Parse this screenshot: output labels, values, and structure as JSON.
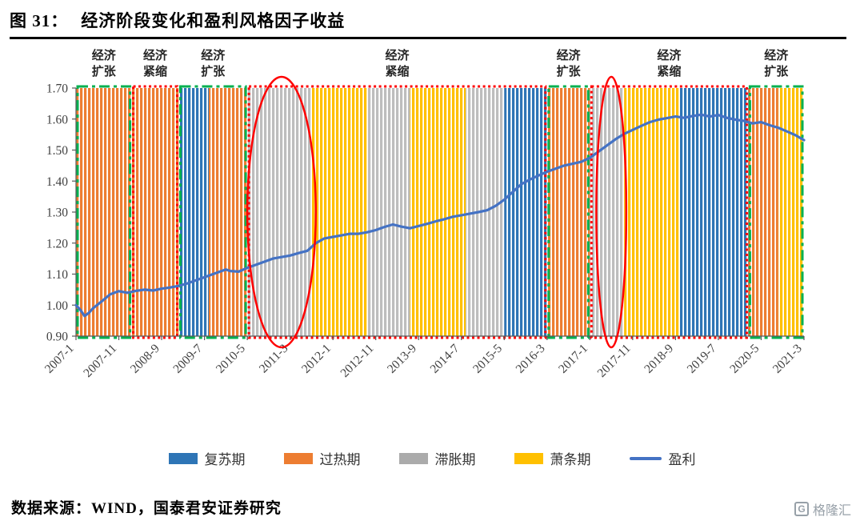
{
  "title": {
    "prefix": "图 31：",
    "text": "经济阶段变化和盈利风格因子收益"
  },
  "source": {
    "text": "数据来源：WIND，国泰君安证券研究"
  },
  "watermark": {
    "icon": "G",
    "text": "格隆汇"
  },
  "chart_data": {
    "type": "line",
    "title": "经济阶段变化和盈利风格因子收益",
    "xlabel": "",
    "ylabel": "",
    "grid": false,
    "legend_position": "bottom",
    "ylim": [
      0.9,
      1.7
    ],
    "ytick_step": 0.1,
    "x_unit": "months_since_2007-01",
    "xlim": [
      0,
      170
    ],
    "xticks": [
      0,
      10,
      20,
      30,
      40,
      50,
      60,
      70,
      80,
      90,
      100,
      110,
      120,
      130,
      140,
      150,
      160,
      170
    ],
    "xtick_labels": [
      "2007-1",
      "2007-11",
      "2008-9",
      "2009-7",
      "2010-5",
      "2011-3",
      "2012-1",
      "2012-11",
      "2013-9",
      "2014-7",
      "2015-5",
      "2016-3",
      "2017-1",
      "2017-11",
      "2018-9",
      "2019-7",
      "2020-5",
      "2021-3"
    ],
    "phase_colors": {
      "recovery": "#2E75B6",
      "overheat": "#ED7D31",
      "stagflation": "#BDBDBD",
      "recession": "#FFC000"
    },
    "phase_labels": {
      "recovery": "复苏期",
      "overheat": "过热期",
      "stagflation": "滞胀期",
      "recession": "萧条期"
    },
    "phase_bands": [
      {
        "start": 0,
        "end": 24,
        "phase": "overheat"
      },
      {
        "start": 24,
        "end": 31,
        "phase": "recovery"
      },
      {
        "start": 31,
        "end": 40,
        "phase": "overheat"
      },
      {
        "start": 40,
        "end": 55,
        "phase": "stagflation"
      },
      {
        "start": 55,
        "end": 68,
        "phase": "recession"
      },
      {
        "start": 68,
        "end": 78,
        "phase": "stagflation"
      },
      {
        "start": 78,
        "end": 91,
        "phase": "recession"
      },
      {
        "start": 91,
        "end": 100,
        "phase": "stagflation"
      },
      {
        "start": 100,
        "end": 110,
        "phase": "recovery"
      },
      {
        "start": 110,
        "end": 120,
        "phase": "overheat"
      },
      {
        "start": 120,
        "end": 128,
        "phase": "stagflation"
      },
      {
        "start": 128,
        "end": 141,
        "phase": "recession"
      },
      {
        "start": 141,
        "end": 157,
        "phase": "recovery"
      },
      {
        "start": 157,
        "end": 164,
        "phase": "overheat"
      },
      {
        "start": 164,
        "end": 170,
        "phase": "recession"
      }
    ],
    "box_colors": {
      "expansion": "#00B050",
      "contraction": "#FF0000"
    },
    "regime_boxes": [
      {
        "start": 0,
        "end": 13,
        "type": "expansion",
        "label": "经济扩张"
      },
      {
        "start": 13,
        "end": 24,
        "type": "contraction",
        "label": "经济紧缩"
      },
      {
        "start": 24,
        "end": 40,
        "type": "expansion",
        "label": "经济扩张"
      },
      {
        "start": 40,
        "end": 110,
        "type": "contraction",
        "label": "经济紧缩"
      },
      {
        "start": 110,
        "end": 120,
        "type": "expansion",
        "label": "经济扩张"
      },
      {
        "start": 120,
        "end": 157,
        "type": "contraction",
        "label": "经济紧缩"
      },
      {
        "start": 157,
        "end": 170,
        "type": "expansion",
        "label": "经济扩张"
      }
    ],
    "highlight_color": "#FF0000",
    "highlight_ellipses": [
      {
        "center_month": 48,
        "radius_months": 8
      },
      {
        "center_month": 125,
        "radius_months": 3.5
      }
    ],
    "series": [
      {
        "name": "盈利",
        "color": "#4472C4",
        "points": [
          [
            0,
            1.0
          ],
          [
            1,
            0.985
          ],
          [
            2,
            0.965
          ],
          [
            3,
            0.975
          ],
          [
            4,
            0.99
          ],
          [
            6,
            1.012
          ],
          [
            8,
            1.035
          ],
          [
            10,
            1.045
          ],
          [
            12,
            1.04
          ],
          [
            14,
            1.046
          ],
          [
            16,
            1.05
          ],
          [
            18,
            1.047
          ],
          [
            20,
            1.053
          ],
          [
            22,
            1.057
          ],
          [
            24,
            1.062
          ],
          [
            26,
            1.07
          ],
          [
            28,
            1.08
          ],
          [
            30,
            1.09
          ],
          [
            32,
            1.1
          ],
          [
            34,
            1.11
          ],
          [
            35,
            1.115
          ],
          [
            36,
            1.11
          ],
          [
            38,
            1.108
          ],
          [
            40,
            1.12
          ],
          [
            42,
            1.13
          ],
          [
            44,
            1.14
          ],
          [
            46,
            1.15
          ],
          [
            48,
            1.155
          ],
          [
            50,
            1.16
          ],
          [
            52,
            1.168
          ],
          [
            54,
            1.175
          ],
          [
            56,
            1.2
          ],
          [
            58,
            1.215
          ],
          [
            60,
            1.22
          ],
          [
            62,
            1.225
          ],
          [
            64,
            1.23
          ],
          [
            66,
            1.23
          ],
          [
            68,
            1.235
          ],
          [
            70,
            1.242
          ],
          [
            72,
            1.252
          ],
          [
            74,
            1.26
          ],
          [
            76,
            1.253
          ],
          [
            78,
            1.248
          ],
          [
            80,
            1.255
          ],
          [
            82,
            1.262
          ],
          [
            84,
            1.27
          ],
          [
            86,
            1.277
          ],
          [
            88,
            1.285
          ],
          [
            90,
            1.29
          ],
          [
            92,
            1.295
          ],
          [
            94,
            1.3
          ],
          [
            96,
            1.306
          ],
          [
            98,
            1.32
          ],
          [
            100,
            1.34
          ],
          [
            102,
            1.365
          ],
          [
            104,
            1.39
          ],
          [
            106,
            1.405
          ],
          [
            108,
            1.418
          ],
          [
            110,
            1.43
          ],
          [
            112,
            1.44
          ],
          [
            114,
            1.45
          ],
          [
            116,
            1.456
          ],
          [
            118,
            1.462
          ],
          [
            120,
            1.475
          ],
          [
            122,
            1.495
          ],
          [
            124,
            1.515
          ],
          [
            126,
            1.535
          ],
          [
            128,
            1.552
          ],
          [
            130,
            1.565
          ],
          [
            132,
            1.578
          ],
          [
            134,
            1.59
          ],
          [
            136,
            1.598
          ],
          [
            138,
            1.603
          ],
          [
            140,
            1.608
          ],
          [
            142,
            1.604
          ],
          [
            144,
            1.61
          ],
          [
            146,
            1.614
          ],
          [
            148,
            1.608
          ],
          [
            150,
            1.613
          ],
          [
            152,
            1.604
          ],
          [
            154,
            1.598
          ],
          [
            156,
            1.594
          ],
          [
            158,
            1.586
          ],
          [
            160,
            1.59
          ],
          [
            162,
            1.58
          ],
          [
            164,
            1.572
          ],
          [
            166,
            1.56
          ],
          [
            168,
            1.548
          ],
          [
            170,
            1.532
          ]
        ]
      }
    ],
    "legend": [
      {
        "label": "复苏期",
        "swatch": "box",
        "color": "#2E75B6"
      },
      {
        "label": "过热期",
        "swatch": "box",
        "color": "#ED7D31"
      },
      {
        "label": "滞胀期",
        "swatch": "box",
        "color": "#ABABAB"
      },
      {
        "label": "萧条期",
        "swatch": "box",
        "color": "#FFC000"
      },
      {
        "label": "盈利",
        "swatch": "line",
        "color": "#4472C4"
      }
    ]
  }
}
